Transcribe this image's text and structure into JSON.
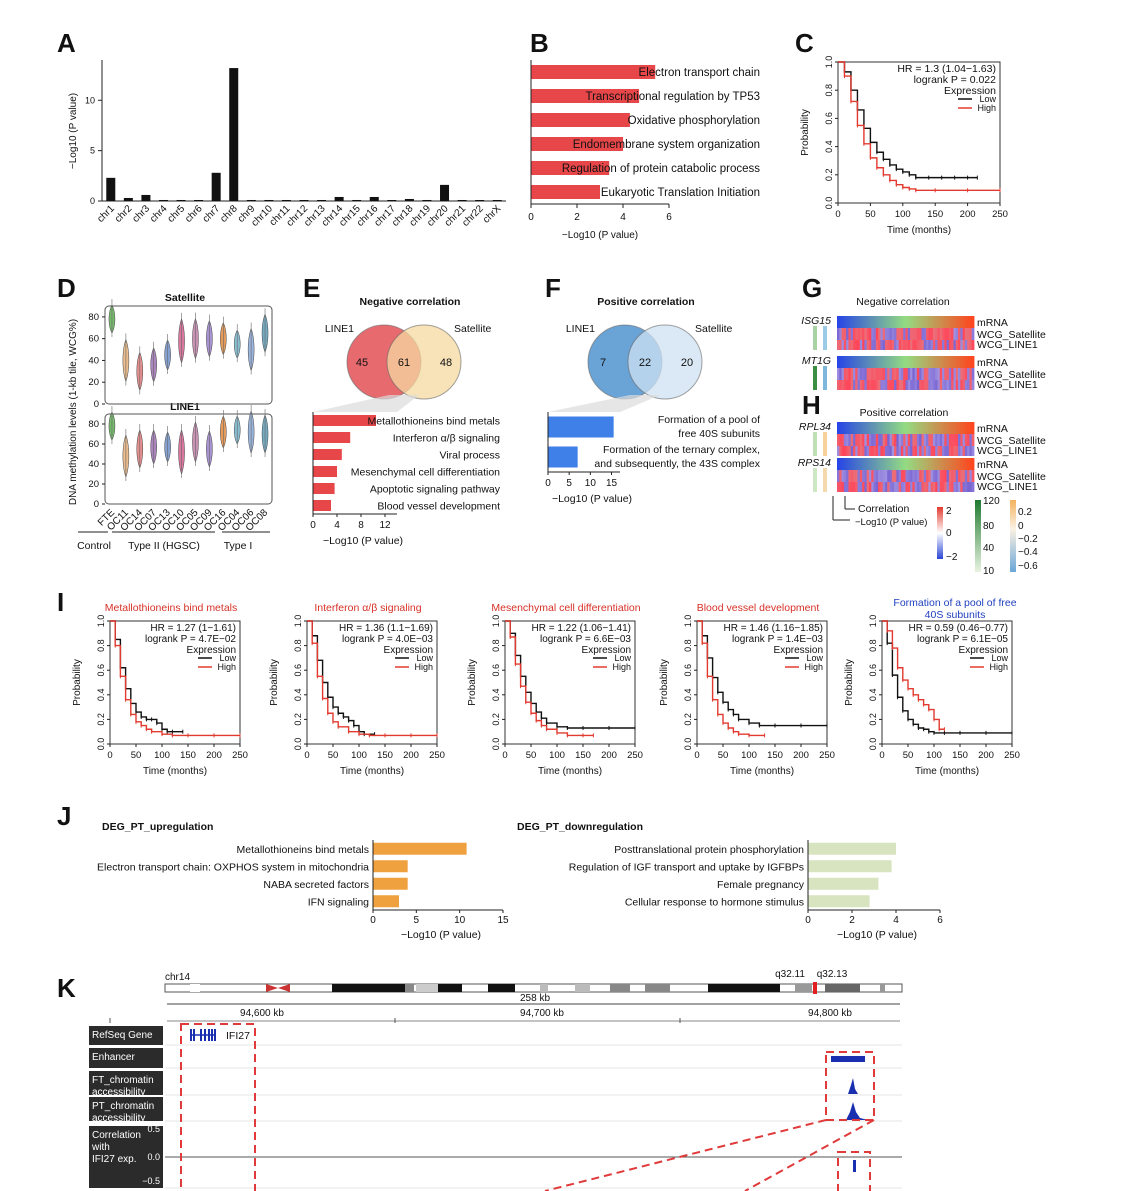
{
  "panel_letters": [
    "A",
    "B",
    "C",
    "D",
    "E",
    "F",
    "G",
    "H",
    "I",
    "J",
    "K"
  ],
  "colors": {
    "bar_red": "#e8474a",
    "bar_black": "#111111",
    "km_low": "#111111",
    "km_high": "#e23a2f",
    "bar_blue": "#3f7fe8",
    "bar_orange": "#f0a13f",
    "bar_green": "#d7e4bf",
    "venn_red": "#e76a6f",
    "venn_yellow": "#f6d9a0",
    "venn_lightblue": "#cfe2f3",
    "venn_blue": "#6aa3d6"
  },
  "chart_data": [
    {
      "id": "A",
      "type": "bar",
      "ylabel": "−Log10 (P value)",
      "categories": [
        "chr1",
        "chr2",
        "chr3",
        "chr4",
        "chr5",
        "chr6",
        "chr7",
        "chr8",
        "chr9",
        "chr10",
        "chr11",
        "chr12",
        "chr13",
        "chr14",
        "chr15",
        "chr16",
        "chr17",
        "chr18",
        "chr19",
        "chr20",
        "chr21",
        "chr22",
        "chrX"
      ],
      "values": [
        2.3,
        0.3,
        0.6,
        0.1,
        0.1,
        0.1,
        2.8,
        13.2,
        0.1,
        0.1,
        0.1,
        0.1,
        0.1,
        0.4,
        0.1,
        0.4,
        0.1,
        0.2,
        0.1,
        1.6,
        0.1,
        0.1,
        0.1
      ],
      "ylim": [
        0,
        14
      ],
      "yticks": [
        "0",
        "5",
        "10"
      ]
    },
    {
      "id": "B",
      "type": "bar",
      "orientation": "horizontal",
      "xlabel": "−Log10 (P value)",
      "categories": [
        "Electron transport chain",
        "Transcriptional regulation by TP53",
        "Oxidative phosphorylation",
        "Endomembrane system organization",
        "Regulation of protein catabolic process",
        "Eukaryotic Translation Initiation"
      ],
      "values": [
        5.4,
        4.7,
        4.3,
        4.0,
        3.4,
        3.0
      ],
      "xlim": [
        0,
        6
      ],
      "xticks": [
        "0",
        "2",
        "4",
        "6"
      ]
    },
    {
      "id": "C",
      "type": "line",
      "xlabel": "Time (months)",
      "ylabel": "Probability",
      "annotation": [
        "HR = 1.3 (1.04−1.63)",
        "logrank P = 0.022"
      ],
      "legend_title": "Expression",
      "series": [
        {
          "name": "Low",
          "x": [
            0,
            10,
            20,
            30,
            40,
            50,
            60,
            70,
            80,
            90,
            100,
            110,
            120,
            140,
            160,
            180,
            200,
            215
          ],
          "y": [
            1.0,
            0.93,
            0.8,
            0.66,
            0.53,
            0.43,
            0.36,
            0.31,
            0.27,
            0.24,
            0.22,
            0.2,
            0.18,
            0.18,
            0.18,
            0.18,
            0.18,
            0.18
          ]
        },
        {
          "name": "High",
          "x": [
            0,
            10,
            20,
            30,
            40,
            50,
            60,
            70,
            80,
            90,
            100,
            110,
            120,
            150,
            200,
            250
          ],
          "y": [
            1.0,
            0.9,
            0.72,
            0.55,
            0.42,
            0.32,
            0.25,
            0.2,
            0.16,
            0.13,
            0.11,
            0.1,
            0.09,
            0.09,
            0.09,
            0.09
          ]
        }
      ],
      "xlim": [
        0,
        250
      ],
      "ylim": [
        0,
        1
      ],
      "xticks": [
        "0",
        "50",
        "100",
        "150",
        "200",
        "250"
      ],
      "yticks": [
        "0.0",
        "0.2",
        "0.4",
        "0.6",
        "0.8",
        "1.0"
      ]
    },
    {
      "id": "D",
      "type": "violin",
      "ylabel": "DNA methylation levels (1-kb tile, WCG%)",
      "subtitles": [
        "Satellite",
        "LINE1"
      ],
      "categories": [
        "FTE",
        "OC11",
        "OC14",
        "OC07",
        "OC13",
        "OC10",
        "OC05",
        "OC09",
        "OC16",
        "OC04",
        "OC06",
        "OC08"
      ],
      "groups": [
        "Control",
        "Type II  (HGSC)",
        "Type I"
      ],
      "satellite_medians": [
        78,
        40,
        30,
        36,
        45,
        58,
        60,
        60,
        60,
        55,
        50,
        65
      ],
      "line1_medians": [
        78,
        48,
        55,
        57,
        57,
        52,
        62,
        55,
        72,
        74,
        72,
        70
      ],
      "violin_colors": [
        "#5fae54",
        "#e8b27a",
        "#e07a7a",
        "#9b6fb0",
        "#6f8fc8",
        "#d35f8e",
        "#c07fa7",
        "#9a7fc9",
        "#e08a3f",
        "#74b3c9",
        "#8aa8d8",
        "#5e9bb6"
      ],
      "ylim": [
        0,
        90
      ],
      "yticks": [
        "0",
        "20",
        "40",
        "60",
        "80"
      ]
    },
    {
      "id": "E",
      "type": "bar",
      "orientation": "horizontal",
      "title": "Negative  correlation",
      "venn": {
        "left": "LINE1",
        "right": "Satellite",
        "counts": [
          "45",
          "61",
          "48"
        ]
      },
      "xlabel": "−Log10 (P value)",
      "categories": [
        "Metallothioneins bind metals",
        "Interferon α/β signaling",
        "Viral process",
        "Mesenchymal cell differentiation",
        "Apoptotic signaling pathway",
        "Blood vessel development"
      ],
      "values": [
        10.5,
        6.2,
        4.8,
        4.0,
        3.6,
        3.0
      ],
      "xlim": [
        0,
        14
      ],
      "xticks": [
        "0",
        "4",
        "8",
        "12"
      ]
    },
    {
      "id": "F",
      "type": "bar",
      "orientation": "horizontal",
      "title": "Positive correlation",
      "venn": {
        "left": "LINE1",
        "right": "Satellite",
        "counts": [
          "7",
          "22",
          "20"
        ]
      },
      "xlabel": "−Log10 (P value)",
      "categories": [
        "Formation of a pool of free 40S subunits",
        "Formation of the ternary complex, and subsequently, the 43S complex"
      ],
      "labels_lines": [
        [
          "Formation of a pool of",
          "free 40S subunits"
        ],
        [
          "Formation of the ternary complex,",
          "and subsequently, the 43S complex"
        ]
      ],
      "values": [
        15.5,
        7.0
      ],
      "xlim": [
        0,
        17
      ],
      "xticks": [
        "0",
        "5",
        "10",
        "15"
      ]
    },
    {
      "id": "G",
      "type": "heatmap",
      "title": "Negative correlation",
      "genes": [
        "ISG15",
        "MT1G"
      ],
      "row_labels": [
        "mRNA",
        "WCG_Satellite",
        "WCG_LINE1"
      ]
    },
    {
      "id": "H",
      "type": "heatmap",
      "title": "Positive correlation",
      "genes": [
        "RPL34",
        "RPS14"
      ],
      "row_labels": [
        "mRNA",
        "WCG_Satellite",
        "WCG_LINE1"
      ],
      "legend_labels": [
        "Correlation",
        "−Log10 (P value)"
      ],
      "zscale_ticks": [
        "2",
        "0",
        "−2"
      ],
      "pval_ticks": [
        "120",
        "80",
        "40",
        "10"
      ],
      "corr_ticks": [
        "0.2",
        "0",
        "−0.2",
        "−0.4",
        "−0.6"
      ]
    },
    {
      "id": "I",
      "type": "line",
      "plots": [
        {
          "title": "Metallothioneins bind metals",
          "title_color": "#d73027",
          "stats": [
            "HR = 1.27 (1−1.61)",
            "logrank P = 4.7E−02"
          ],
          "low": {
            "x": [
              0,
              10,
              20,
              30,
              40,
              50,
              60,
              70,
              80,
              90,
              100,
              110,
              120,
              140
            ],
            "y": [
              1,
              0.85,
              0.62,
              0.45,
              0.33,
              0.26,
              0.22,
              0.2,
              0.2,
              0.17,
              0.12,
              0.1,
              0.1,
              0.1
            ]
          },
          "high": {
            "x": [
              0,
              10,
              20,
              30,
              40,
              50,
              60,
              70,
              80,
              100,
              120,
              150,
              200,
              250
            ],
            "y": [
              1,
              0.8,
              0.55,
              0.36,
              0.24,
              0.18,
              0.15,
              0.12,
              0.1,
              0.08,
              0.07,
              0.07,
              0.07,
              0.07
            ]
          }
        },
        {
          "title": "Interferon α/β signaling",
          "title_color": "#d73027",
          "stats": [
            "HR = 1.36 (1.1−1.69)",
            "logrank P = 4.0E−03"
          ],
          "low": {
            "x": [
              0,
              10,
              20,
              30,
              40,
              50,
              60,
              70,
              80,
              90,
              100,
              110,
              130
            ],
            "y": [
              1,
              0.88,
              0.68,
              0.5,
              0.38,
              0.3,
              0.25,
              0.22,
              0.19,
              0.15,
              0.1,
              0.08,
              0.08
            ]
          },
          "high": {
            "x": [
              0,
              10,
              20,
              30,
              40,
              50,
              60,
              80,
              100,
              120,
              150,
              200,
              250
            ],
            "y": [
              1,
              0.82,
              0.55,
              0.37,
              0.25,
              0.18,
              0.14,
              0.1,
              0.08,
              0.07,
              0.07,
              0.07,
              0.07
            ]
          }
        },
        {
          "title": "Mesenchymal cell differentiation",
          "title_color": "#d73027",
          "stats": [
            "HR = 1.22 (1.06−1.41)",
            "logrank P = 6.6E−03"
          ],
          "low": {
            "x": [
              0,
              10,
              20,
              30,
              40,
              50,
              60,
              70,
              80,
              100,
              120,
              150,
              200,
              250
            ],
            "y": [
              1,
              0.9,
              0.72,
              0.55,
              0.42,
              0.33,
              0.26,
              0.21,
              0.17,
              0.14,
              0.13,
              0.13,
              0.13,
              0.13
            ]
          },
          "high": {
            "x": [
              0,
              10,
              20,
              30,
              40,
              50,
              60,
              70,
              80,
              100,
              120,
              150,
              170
            ],
            "y": [
              1,
              0.87,
              0.65,
              0.47,
              0.34,
              0.25,
              0.19,
              0.15,
              0.12,
              0.09,
              0.07,
              0.07,
              0.07
            ]
          }
        },
        {
          "title": "Blood vessel development",
          "title_color": "#d73027",
          "stats": [
            "HR = 1.46 (1.16−1.85)",
            "logrank P = 1.4E−03"
          ],
          "low": {
            "x": [
              0,
              10,
              20,
              30,
              40,
              50,
              60,
              70,
              80,
              100,
              120,
              150,
              200,
              250
            ],
            "y": [
              1,
              0.88,
              0.7,
              0.54,
              0.42,
              0.34,
              0.28,
              0.24,
              0.2,
              0.17,
              0.15,
              0.15,
              0.15,
              0.15
            ]
          },
          "high": {
            "x": [
              0,
              10,
              20,
              30,
              40,
              50,
              60,
              70,
              80,
              100,
              130
            ],
            "y": [
              1,
              0.82,
              0.55,
              0.36,
              0.24,
              0.17,
              0.13,
              0.1,
              0.08,
              0.07,
              0.07
            ]
          }
        },
        {
          "title": "Formation of a pool of free 40S subunits",
          "title_lines": [
            "Formation of a pool of free",
            "40S subunits"
          ],
          "title_color": "#1f3fbf",
          "stats": [
            "HR = 0.59 (0.46−0.77)",
            "logrank P = 6.1E−05"
          ],
          "low": {
            "x": [
              0,
              10,
              20,
              30,
              40,
              50,
              60,
              70,
              80,
              90,
              100,
              120,
              150,
              200,
              250
            ],
            "y": [
              1,
              0.82,
              0.56,
              0.38,
              0.27,
              0.2,
              0.16,
              0.13,
              0.12,
              0.1,
              0.09,
              0.09,
              0.09,
              0.09,
              0.09
            ]
          },
          "high": {
            "x": [
              0,
              10,
              20,
              30,
              40,
              50,
              60,
              70,
              80,
              90,
              100,
              110,
              120
            ],
            "y": [
              1,
              0.92,
              0.78,
              0.62,
              0.52,
              0.45,
              0.4,
              0.36,
              0.32,
              0.28,
              0.2,
              0.12,
              0.12
            ]
          }
        }
      ],
      "xlabel": "Time (months)",
      "ylabel": "Probability",
      "legend_title": "Expression",
      "legend": [
        "Low",
        "High"
      ],
      "xlim": [
        0,
        250
      ],
      "ylim": [
        0,
        1
      ],
      "xticks": [
        "0",
        "50",
        "100",
        "150",
        "200",
        "250"
      ],
      "yticks": [
        "0.0",
        "0.2",
        "0.4",
        "0.6",
        "0.8",
        "1.0"
      ]
    },
    {
      "id": "J",
      "type": "bar",
      "orientation": "horizontal",
      "panels": [
        {
          "title": "DEG_PT_upregulation",
          "categories": [
            "Metallothioneins bind metals",
            "Electron transport chain: OXPHOS system in mitochondria",
            "NABA secreted factors",
            "IFN signaling"
          ],
          "values": [
            10.8,
            4.0,
            4.0,
            3.0
          ],
          "xlim": [
            0,
            15
          ],
          "xticks": [
            "0",
            "5",
            "10",
            "15"
          ]
        },
        {
          "title": "DEG_PT_downregulation",
          "categories": [
            "Posttranslational protein phosphorylation",
            "Regulation of IGF transport and uptake by IGFBPs",
            "Female pregnancy",
            "Cellular response to hormone stimulus"
          ],
          "values": [
            4.0,
            3.8,
            3.2,
            2.8
          ],
          "xlim": [
            0,
            6
          ],
          "xticks": [
            "0",
            "2",
            "4",
            "6"
          ]
        }
      ],
      "xlabel": "−Log10 (P value)"
    }
  ],
  "K": {
    "chrom": "chr14",
    "bands": [
      "q32.11",
      "q32.13"
    ],
    "span": "258 kb",
    "positions": [
      "94,600 kb",
      "94,700 kb",
      "94,800 kb"
    ],
    "tracks": [
      "RefSeq Gene",
      "Enhancer",
      "FT_chromatin accessibility",
      "PT_chromatin accessibility",
      "Correlation with IFI27 exp."
    ],
    "track_lines": [
      [
        "RefSeq Gene"
      ],
      [
        "Enhancer"
      ],
      [
        "FT_chromatin",
        "accessibility"
      ],
      [
        "PT_chromatin",
        "accessibility"
      ],
      [
        "Correlation",
        "with",
        "IFI27 exp."
      ]
    ],
    "gene": "IFI27",
    "corr_ticks": [
      "0.5",
      "0.0",
      "−0.5"
    ]
  }
}
